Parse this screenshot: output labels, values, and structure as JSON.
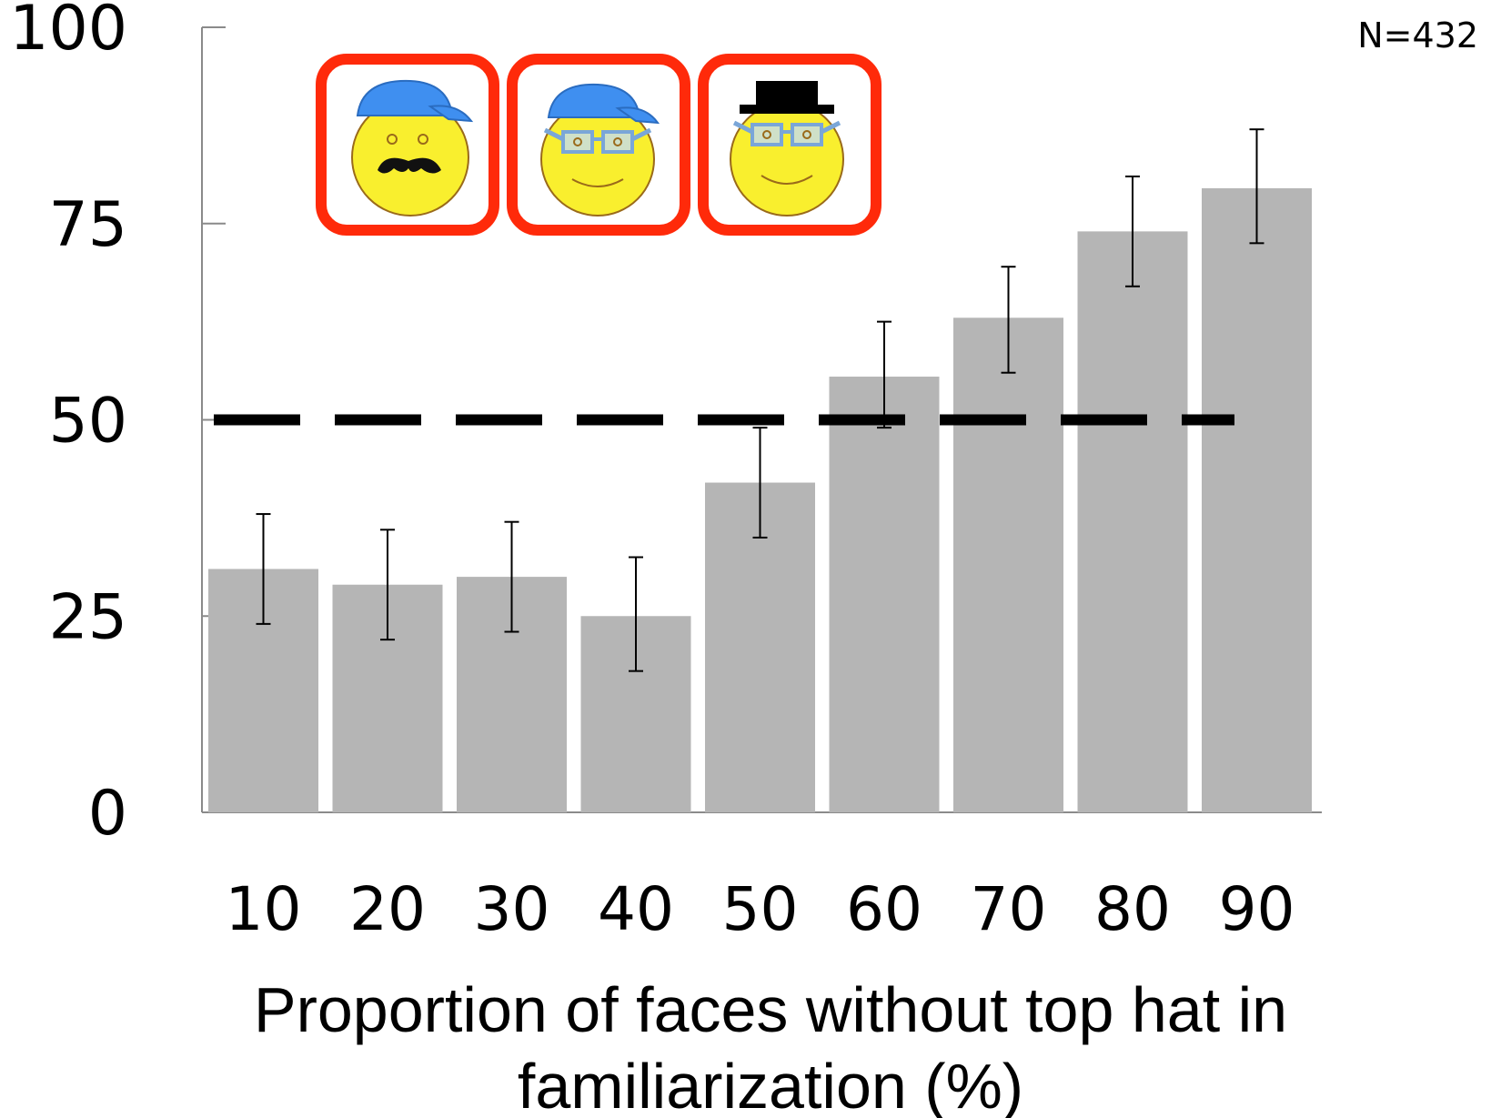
{
  "chart_data": {
    "type": "bar",
    "categories": [
      "10",
      "20",
      "30",
      "40",
      "50",
      "60",
      "70",
      "80",
      "90"
    ],
    "values": [
      31,
      29,
      30,
      25,
      42,
      55.5,
      63,
      74,
      79.5
    ],
    "error_low": [
      24,
      22,
      23,
      18,
      35,
      49,
      56,
      67,
      72.5
    ],
    "error_high": [
      38,
      36,
      37,
      32.5,
      49,
      62.5,
      69.5,
      81,
      87
    ],
    "reference_line": 50,
    "ylim": [
      0,
      100
    ],
    "yticks": [
      "0",
      "25",
      "50",
      "75",
      "100"
    ],
    "xlabel_line1": "Proportion of faces without top hat in",
    "xlabel_line2": "familiarization (%)",
    "annotation": "N=432",
    "bar_color": "#b5b5b5",
    "icon_border_color": "#ff2a0a",
    "icons": [
      "smiley-cap-mustache-icon",
      "smiley-cap-glasses-icon",
      "smiley-tophat-glasses-icon"
    ]
  }
}
